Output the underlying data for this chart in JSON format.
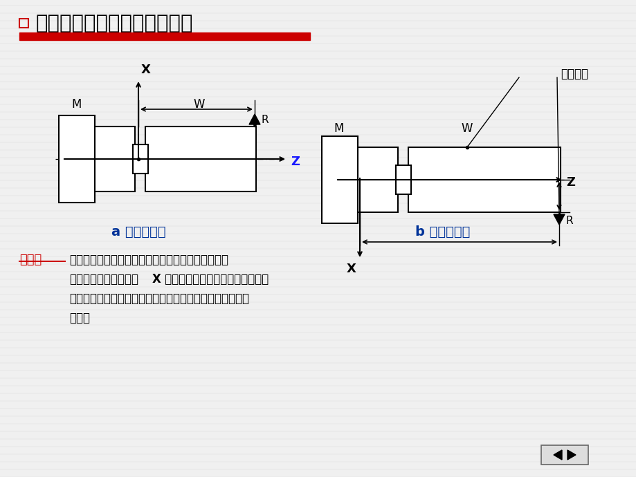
{
  "title": "机床原点、工件原点、参考点",
  "bg_color": "#f0f0f0",
  "red_bar_color": "#cc0000",
  "title_color": "#000000",
  "label_a": "a 刀架后置式",
  "label_b": "b 刀架前置式",
  "gongjianyuandian": "工件原点",
  "shuoming_title": "说明：",
  "shuoming_text": "由于车削加工是围绕主轴中心前后对称的，因此无论\n是前置还是后置式的，X 轴指向前后对编程来说并无多大差\n别。为适应笛卡尔坐标习惯，编程绘图时按后置式的方式进\n行表示",
  "X_bold": "X"
}
